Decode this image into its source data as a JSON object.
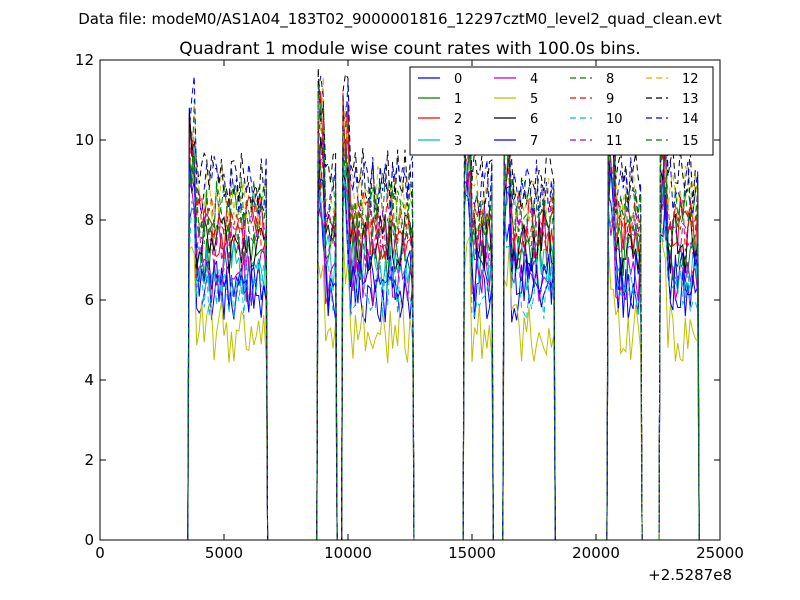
{
  "chart_data": {
    "type": "line",
    "suptitle": "Data file: modeM0/AS1A04_183T02_9000001816_12297cztM0_level2_quad_clean.evt",
    "title": "Quadrant 1 module wise count rates with 100.0s bins.",
    "xlabel": "",
    "ylabel": "",
    "x_offset_label": "+2.5287e8",
    "xlim": [
      0,
      25000
    ],
    "ylim": [
      0,
      12
    ],
    "xticks": [
      "0",
      "5000",
      "10000",
      "15000",
      "20000",
      "25000"
    ],
    "yticks": [
      "0",
      "2",
      "4",
      "6",
      "8",
      "10",
      "12"
    ],
    "legend_position": "top-right",
    "segments": [
      [
        3600,
        6700
      ],
      [
        8800,
        9500
      ],
      [
        9800,
        12600
      ],
      [
        14700,
        15800
      ],
      [
        16300,
        18300
      ],
      [
        20500,
        21800
      ],
      [
        22600,
        24100
      ]
    ],
    "series": [
      {
        "name": "0",
        "color": "#0000ff",
        "dash": "solid",
        "level": 6.2
      },
      {
        "name": "1",
        "color": "#008000",
        "dash": "solid",
        "level": 7.2
      },
      {
        "name": "2",
        "color": "#ff0000",
        "dash": "solid",
        "level": 7.8
      },
      {
        "name": "3",
        "color": "#00bfbf",
        "dash": "solid",
        "level": 6.9
      },
      {
        "name": "4",
        "color": "#bf00bf",
        "dash": "solid",
        "level": 6.6
      },
      {
        "name": "5",
        "color": "#bfbf00",
        "dash": "solid",
        "level": 5.2
      },
      {
        "name": "6",
        "color": "#000000",
        "dash": "solid",
        "level": 7.4
      },
      {
        "name": "7",
        "color": "#0000ff",
        "dash": "solid",
        "level": 6.5
      },
      {
        "name": "8",
        "color": "#008000",
        "dash": "dashed",
        "level": 8.3
      },
      {
        "name": "9",
        "color": "#ff0000",
        "dash": "dashed",
        "level": 8.0
      },
      {
        "name": "10",
        "color": "#00bfbf",
        "dash": "dashed",
        "level": 6.3
      },
      {
        "name": "11",
        "color": "#bf00bf",
        "dash": "dashed",
        "level": 7.6
      },
      {
        "name": "12",
        "color": "#bfbf00",
        "dash": "dashed",
        "level": 8.6
      },
      {
        "name": "13",
        "color": "#000000",
        "dash": "dashed",
        "level": 9.0
      },
      {
        "name": "14",
        "color": "#0000ff",
        "dash": "dashed",
        "level": 8.8
      },
      {
        "name": "15",
        "color": "#008000",
        "dash": "dashed",
        "level": 8.1
      }
    ]
  }
}
